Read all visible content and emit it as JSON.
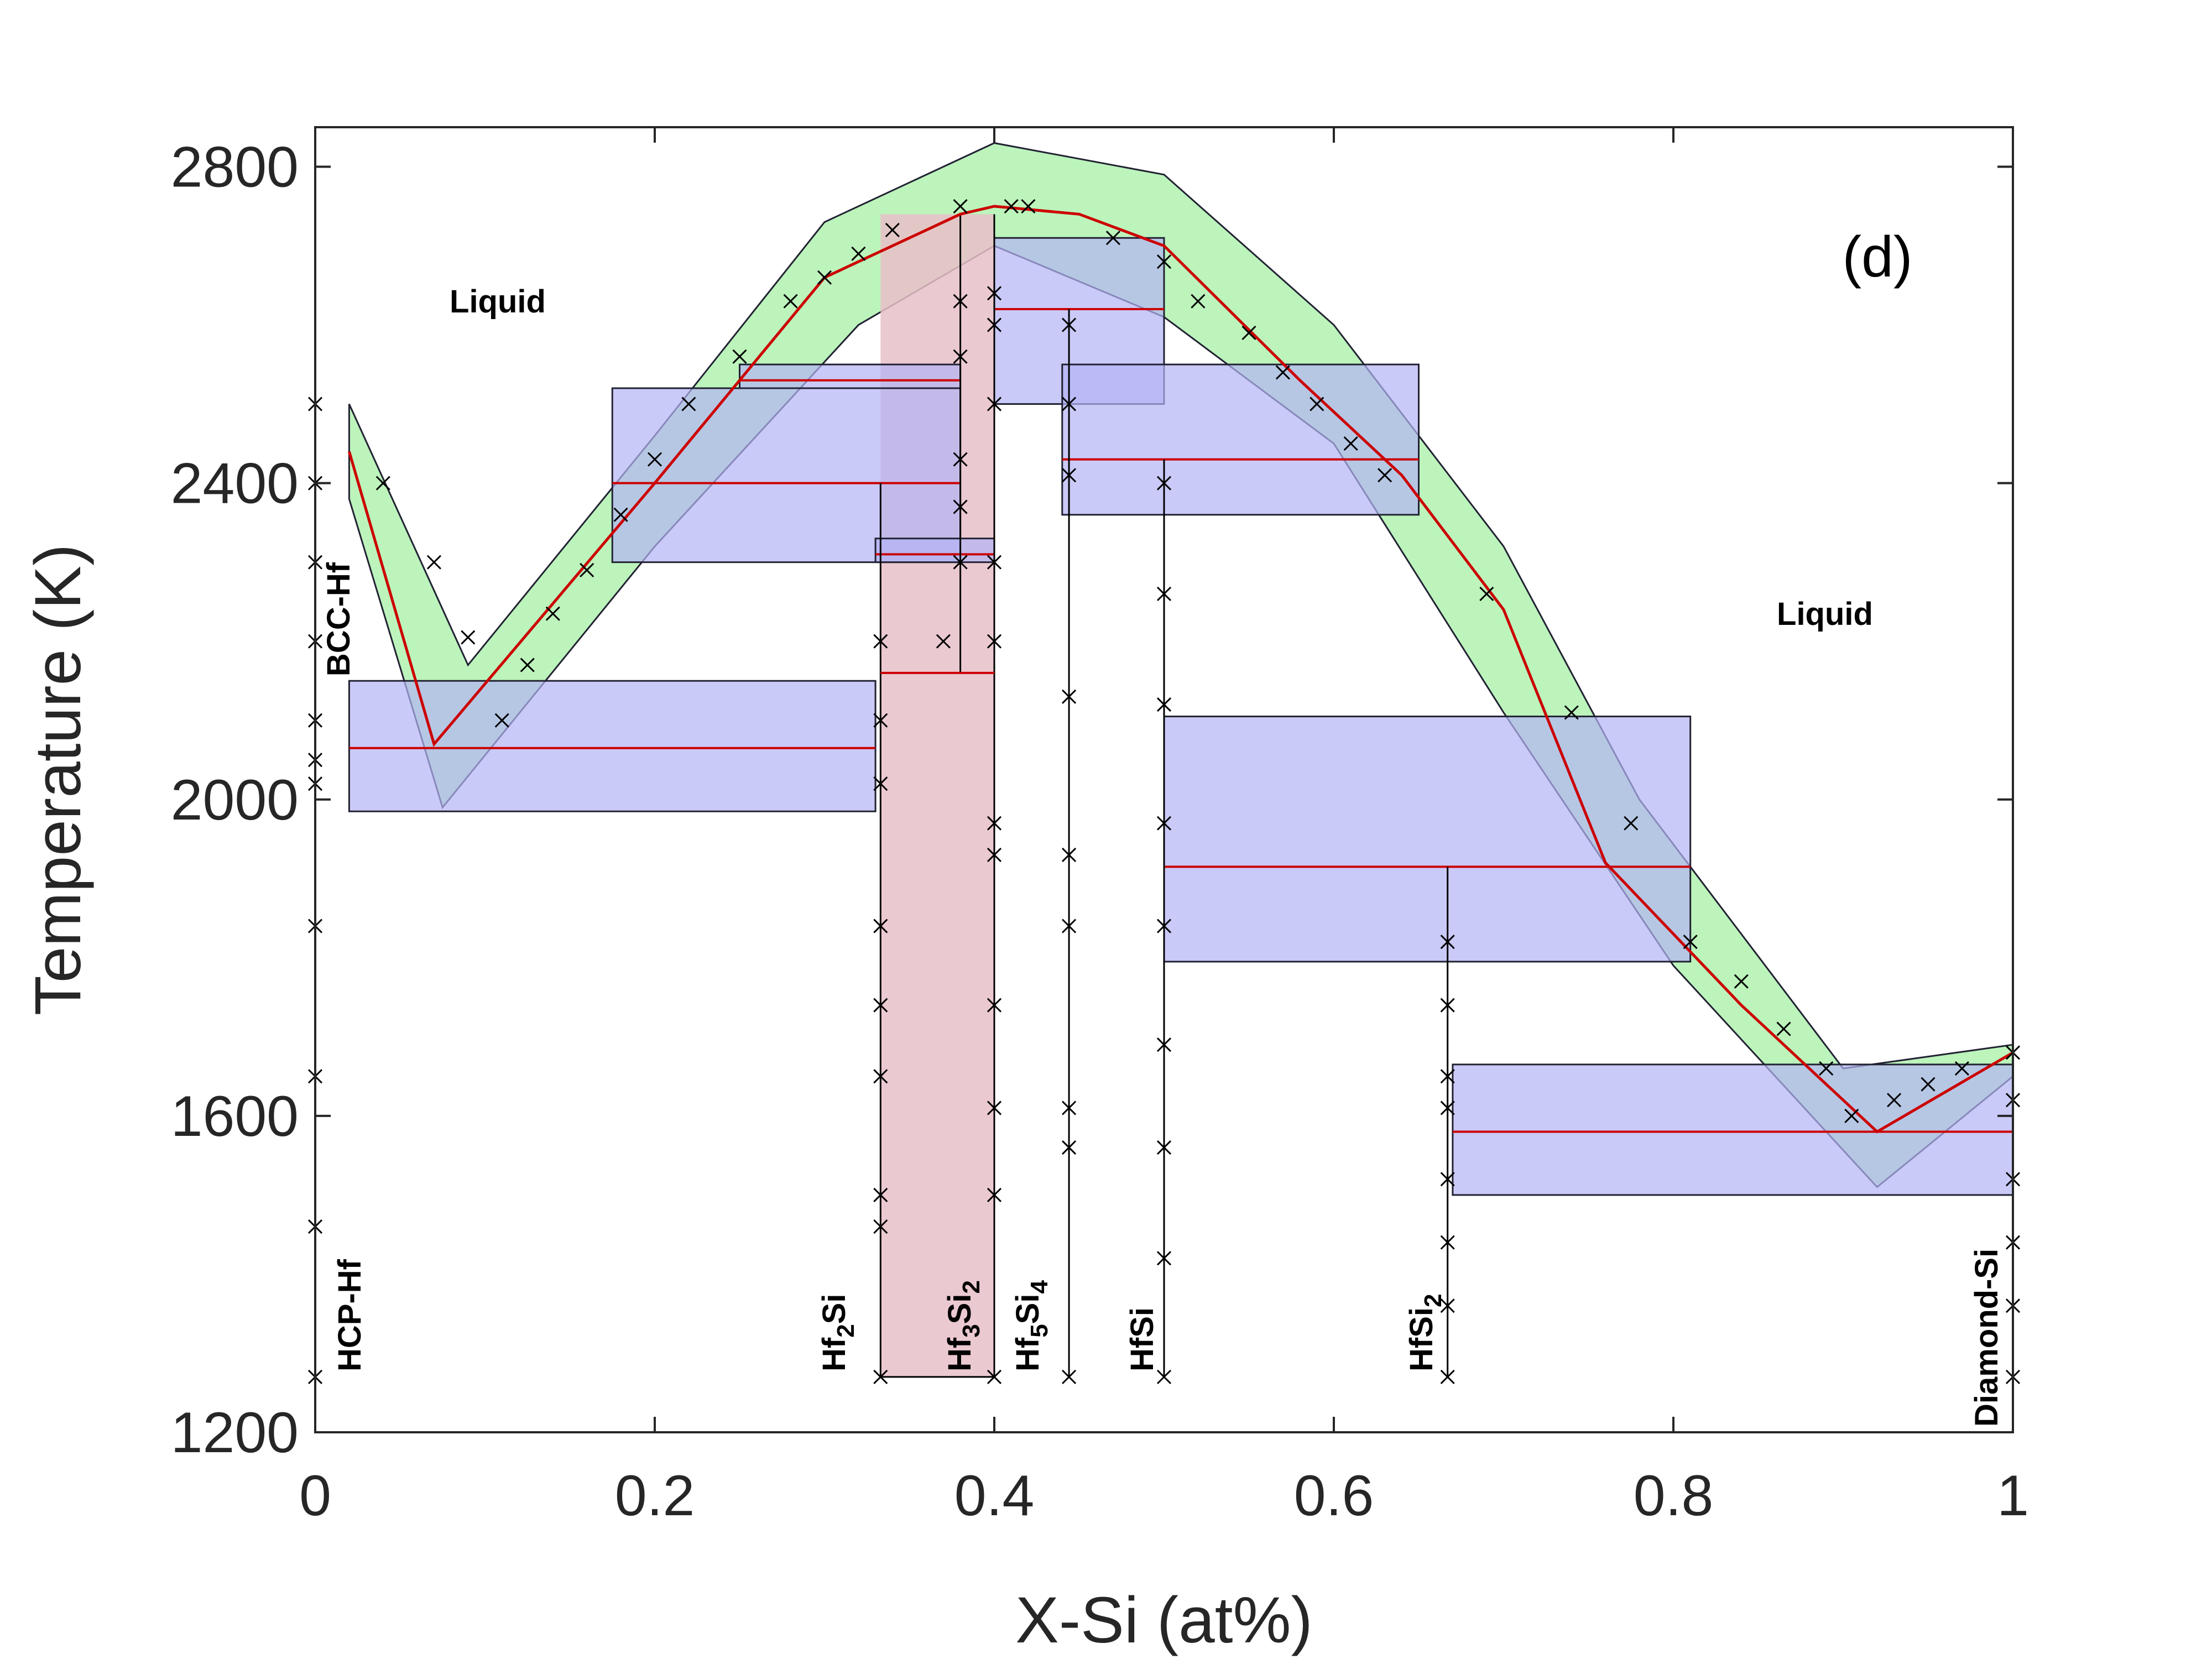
{
  "chart_data": {
    "type": "line",
    "title": "",
    "panel_label": "(d)",
    "xlabel": "X-Si (at%)",
    "ylabel": "Temperature (K)",
    "xlim": [
      0,
      1
    ],
    "ylim": [
      1200,
      2850
    ],
    "x_ticks": [
      0,
      0.2,
      0.4,
      0.6,
      0.8,
      1
    ],
    "x_tick_labels": [
      "0",
      "0.2",
      "0.4",
      "0.6",
      "0.8",
      "1"
    ],
    "y_ticks": [
      1200,
      1600,
      2000,
      2400,
      2800
    ],
    "y_tick_labels": [
      "1200",
      "1600",
      "2000",
      "2400",
      "2800"
    ],
    "colors": {
      "green_band": "#a6f0a6",
      "blue_band": "#b3b3f5",
      "red_band": "#e8c0c8",
      "teal_overlap": "#8ec4cc",
      "liquidus": "#cc0000",
      "band_edge": "#222233",
      "marker": "#000000"
    },
    "liquidus_mean": [
      [
        0.02,
        2440
      ],
      [
        0.07,
        2070
      ],
      [
        0.2,
        2400
      ],
      [
        0.3,
        2660
      ],
      [
        0.38,
        2740
      ],
      [
        0.4,
        2750
      ],
      [
        0.45,
        2740
      ],
      [
        0.5,
        2700
      ],
      [
        0.58,
        2530
      ],
      [
        0.64,
        2410
      ],
      [
        0.7,
        2240
      ],
      [
        0.76,
        1920
      ],
      [
        0.84,
        1740
      ],
      [
        0.92,
        1580
      ],
      [
        1.0,
        1680
      ]
    ],
    "liquidus_upper": [
      [
        0.02,
        2500
      ],
      [
        0.09,
        2170
      ],
      [
        0.2,
        2460
      ],
      [
        0.3,
        2730
      ],
      [
        0.4,
        2830
      ],
      [
        0.5,
        2790
      ],
      [
        0.6,
        2600
      ],
      [
        0.7,
        2320
      ],
      [
        0.78,
        2000
      ],
      [
        0.9,
        1660
      ],
      [
        1.0,
        1690
      ]
    ],
    "liquidus_lower": [
      [
        0.02,
        2380
      ],
      [
        0.075,
        1990
      ],
      [
        0.2,
        2320
      ],
      [
        0.32,
        2600
      ],
      [
        0.4,
        2700
      ],
      [
        0.5,
        2610
      ],
      [
        0.6,
        2450
      ],
      [
        0.7,
        2110
      ],
      [
        0.8,
        1790
      ],
      [
        0.92,
        1510
      ],
      [
        1.0,
        1650
      ]
    ],
    "invariants": [
      {
        "name": "eutectic-bcc-hf2si",
        "T": 2065,
        "T_low": 1985,
        "T_high": 2150,
        "x_start": 0.02,
        "x_end": 0.33
      },
      {
        "name": "peritectic-hf2si",
        "T": 2400,
        "T_low": 2300,
        "T_high": 2520,
        "x_start": 0.175,
        "x_end": 0.38
      },
      {
        "name": "hf3si2-upper",
        "T": 2530,
        "T_low": 2520,
        "T_high": 2550,
        "x_start": 0.25,
        "x_end": 0.38
      },
      {
        "name": "hf3si2-lower",
        "T": 2310,
        "T_low": 2300,
        "T_high": 2330,
        "x_start": 0.33,
        "x_end": 0.4
      },
      {
        "name": "hf5si4-peritectic",
        "T": 2620,
        "T_low": 2500,
        "T_high": 2710,
        "x_start": 0.4,
        "x_end": 0.5
      },
      {
        "name": "hf5si4-hfsi-eutectic",
        "T": 2430,
        "T_low": 2360,
        "T_high": 2550,
        "x_start": 0.44,
        "x_end": 0.65
      },
      {
        "name": "hfsi-hfsi2-peritectic",
        "T": 1915,
        "T_low": 1795,
        "T_high": 2105,
        "x_start": 0.5,
        "x_end": 0.81
      },
      {
        "name": "hfsi2-si-eutectic",
        "T": 1580,
        "T_low": 1500,
        "T_high": 1665,
        "x_start": 0.67,
        "x_end": 1.0
      }
    ],
    "compounds": [
      {
        "name": "HCP-Hf",
        "x": 0.0
      },
      {
        "name": "Hf2Si",
        "x": 0.333
      },
      {
        "name": "Hf3Si2",
        "x": 0.4
      },
      {
        "name": "Hf5Si4",
        "x": 0.444
      },
      {
        "name": "HfSi",
        "x": 0.5
      },
      {
        "name": "HfSi2",
        "x": 0.667
      },
      {
        "name": "Diamond-Si",
        "x": 1.0
      }
    ],
    "phase_labels": {
      "liquid_left": "Liquid",
      "liquid_right": "Liquid",
      "bcc_hf": "BCC-Hf",
      "hcp_hf": "HCP-Hf",
      "hf2si_base": "Hf",
      "hf2si_sub": "2",
      "hf2si_tail": "Si",
      "hf3si2_base": "Hf",
      "hf3si2_sub1": "3",
      "hf3si2_mid": "Si",
      "hf3si2_sub2": "2",
      "hf5si4_base": "Hf",
      "hf5si4_sub1": "5",
      "hf5si4_mid": "Si",
      "hf5si4_sub2": "4",
      "hfsi": "HfSi",
      "hfsi2_base": "HfSi",
      "hfsi2_sub": "2",
      "diamond_si": "Diamond-Si"
    },
    "experimental_points": [
      [
        0.04,
        2400
      ],
      [
        0.07,
        2300
      ],
      [
        0.09,
        2205
      ],
      [
        0.11,
        2100
      ],
      [
        0.125,
        2170
      ],
      [
        0.14,
        2235
      ],
      [
        0.16,
        2290
      ],
      [
        0.18,
        2360
      ],
      [
        0.2,
        2430
      ],
      [
        0.22,
        2500
      ],
      [
        0.25,
        2560
      ],
      [
        0.28,
        2630
      ],
      [
        0.3,
        2660
      ],
      [
        0.32,
        2690
      ],
      [
        0.34,
        2720
      ],
      [
        0.38,
        2750
      ],
      [
        0.41,
        2750
      ],
      [
        0.42,
        2750
      ],
      [
        0.47,
        2710
      ],
      [
        0.5,
        2680
      ],
      [
        0.52,
        2630
      ],
      [
        0.55,
        2590
      ],
      [
        0.57,
        2540
      ],
      [
        0.59,
        2500
      ],
      [
        0.61,
        2450
      ],
      [
        0.63,
        2410
      ],
      [
        0.69,
        2260
      ],
      [
        0.74,
        2110
      ],
      [
        0.775,
        1970
      ],
      [
        0.81,
        1820
      ],
      [
        0.84,
        1770
      ],
      [
        0.865,
        1710
      ],
      [
        0.89,
        1660
      ],
      [
        0.905,
        1600
      ],
      [
        0.93,
        1620
      ],
      [
        0.95,
        1640
      ],
      [
        0.97,
        1660
      ],
      [
        0.0,
        2500
      ],
      [
        0.0,
        2400
      ],
      [
        0.0,
        2300
      ],
      [
        0.0,
        2200
      ],
      [
        0.0,
        2100
      ],
      [
        0.0,
        2050
      ],
      [
        0.0,
        2020
      ],
      [
        0.0,
        1840
      ],
      [
        0.0,
        1650
      ],
      [
        0.0,
        1460
      ],
      [
        0.0,
        1270
      ],
      [
        0.333,
        2200
      ],
      [
        0.333,
        2100
      ],
      [
        0.333,
        2020
      ],
      [
        0.333,
        1840
      ],
      [
        0.333,
        1740
      ],
      [
        0.333,
        1650
      ],
      [
        0.333,
        1500
      ],
      [
        0.333,
        1460
      ],
      [
        0.333,
        1270
      ],
      [
        0.4,
        2640
      ],
      [
        0.4,
        2600
      ],
      [
        0.4,
        2500
      ],
      [
        0.4,
        2300
      ],
      [
        0.4,
        2200
      ],
      [
        0.4,
        1970
      ],
      [
        0.4,
        1930
      ],
      [
        0.4,
        1740
      ],
      [
        0.4,
        1610
      ],
      [
        0.4,
        1500
      ],
      [
        0.4,
        1270
      ],
      [
        0.444,
        2600
      ],
      [
        0.444,
        2500
      ],
      [
        0.444,
        2410
      ],
      [
        0.444,
        2130
      ],
      [
        0.444,
        1930
      ],
      [
        0.444,
        1840
      ],
      [
        0.444,
        1610
      ],
      [
        0.444,
        1560
      ],
      [
        0.444,
        1270
      ],
      [
        0.5,
        2400
      ],
      [
        0.5,
        2260
      ],
      [
        0.5,
        2120
      ],
      [
        0.5,
        1970
      ],
      [
        0.5,
        1840
      ],
      [
        0.5,
        1690
      ],
      [
        0.5,
        1560
      ],
      [
        0.5,
        1420
      ],
      [
        0.5,
        1270
      ],
      [
        0.667,
        1820
      ],
      [
        0.667,
        1740
      ],
      [
        0.667,
        1650
      ],
      [
        0.667,
        1610
      ],
      [
        0.667,
        1520
      ],
      [
        0.667,
        1440
      ],
      [
        0.667,
        1360
      ],
      [
        0.667,
        1270
      ],
      [
        1.0,
        1680
      ],
      [
        1.0,
        1620
      ],
      [
        1.0,
        1520
      ],
      [
        1.0,
        1440
      ],
      [
        1.0,
        1360
      ],
      [
        1.0,
        1270
      ],
      [
        0.38,
        2630
      ],
      [
        0.38,
        2560
      ],
      [
        0.38,
        2430
      ],
      [
        0.38,
        2370
      ],
      [
        0.38,
        2300
      ],
      [
        0.37,
        2200
      ]
    ]
  }
}
